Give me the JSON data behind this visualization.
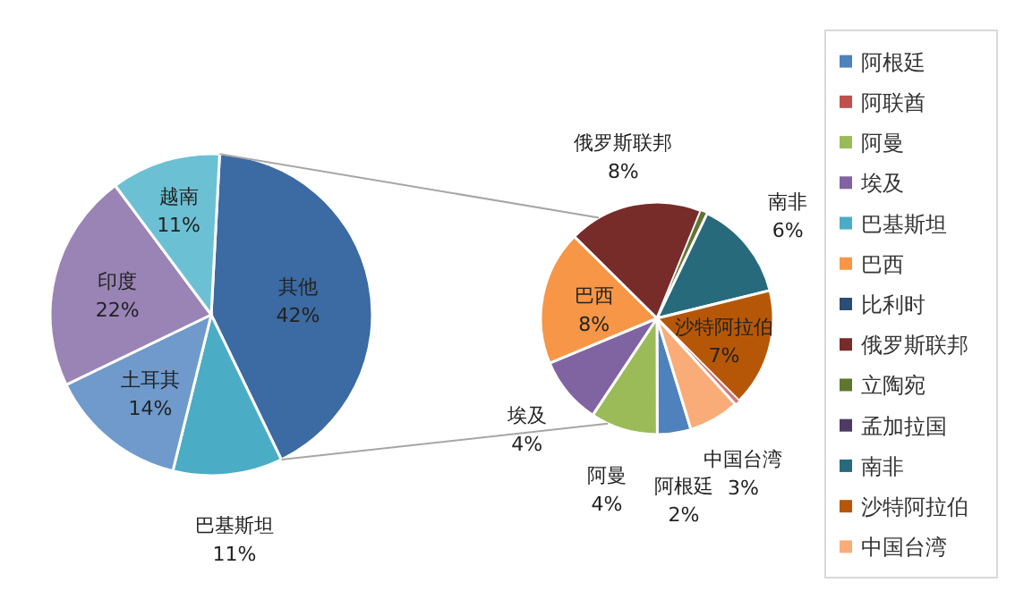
{
  "chart_data": [
    {
      "type": "pie",
      "categories": [
        "其他",
        "巴基斯坦",
        "土耳其",
        "印度",
        "越南"
      ],
      "values": [
        42,
        11,
        14,
        22,
        11
      ],
      "value_labels": [
        "42%",
        "11%",
        "14%",
        "22%",
        "11%"
      ],
      "colors": [
        "#3c6aa2",
        "#4bacc6",
        "#6f9acb",
        "#9a84b6",
        "#6cc0d4"
      ]
    },
    {
      "type": "pie",
      "categories": [
        "阿根廷",
        "阿联酋",
        "阿曼",
        "埃及",
        "巴基斯坦",
        "巴西",
        "比利时",
        "俄罗斯联邦",
        "立陶宛",
        "孟加拉国",
        "南非",
        "沙特阿拉伯",
        null,
        "中国台湾"
      ],
      "values": [
        2,
        null,
        4,
        4,
        null,
        8,
        null,
        8,
        0.4,
        null,
        6,
        7,
        0.3,
        3
      ],
      "value_labels": [
        "2%",
        null,
        "4%",
        "4%",
        null,
        "8%",
        null,
        "8%",
        null,
        null,
        "6%",
        "7%",
        null,
        "3%"
      ],
      "colors": [
        "#4f81bd",
        "#c0504d",
        "#9bbb59",
        "#8064a2",
        "#4bacc6",
        "#f79646",
        "#2c4d75",
        "#772c2a",
        "#5f7530",
        "#4d3b62",
        "#276a7c",
        "#b65708",
        "#cd7a78",
        "#f9ac78"
      ],
      "legend": "right"
    }
  ]
}
